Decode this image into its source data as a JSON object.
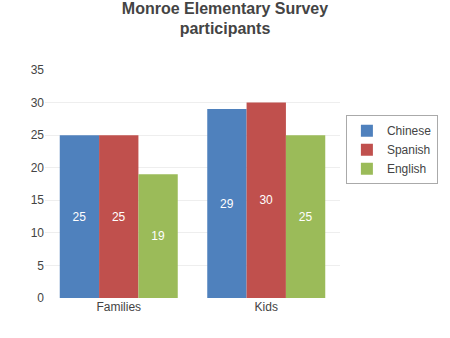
{
  "chart_data": {
    "type": "bar",
    "title": "Monroe Elementary Survey\nparticipants",
    "categories": [
      "Families",
      "Kids"
    ],
    "series": [
      {
        "name": "Chinese",
        "color": "#4F81BD",
        "values": [
          25,
          29
        ]
      },
      {
        "name": "Spanish",
        "color": "#C0504D",
        "values": [
          25,
          30
        ]
      },
      {
        "name": "English",
        "color": "#9BBB59",
        "values": [
          19,
          25
        ]
      }
    ],
    "ylim": [
      0,
      35
    ],
    "yticks": [
      0,
      5,
      10,
      15,
      20,
      25,
      30,
      35
    ],
    "grid": true,
    "legend": "right",
    "data_labels": true
  }
}
